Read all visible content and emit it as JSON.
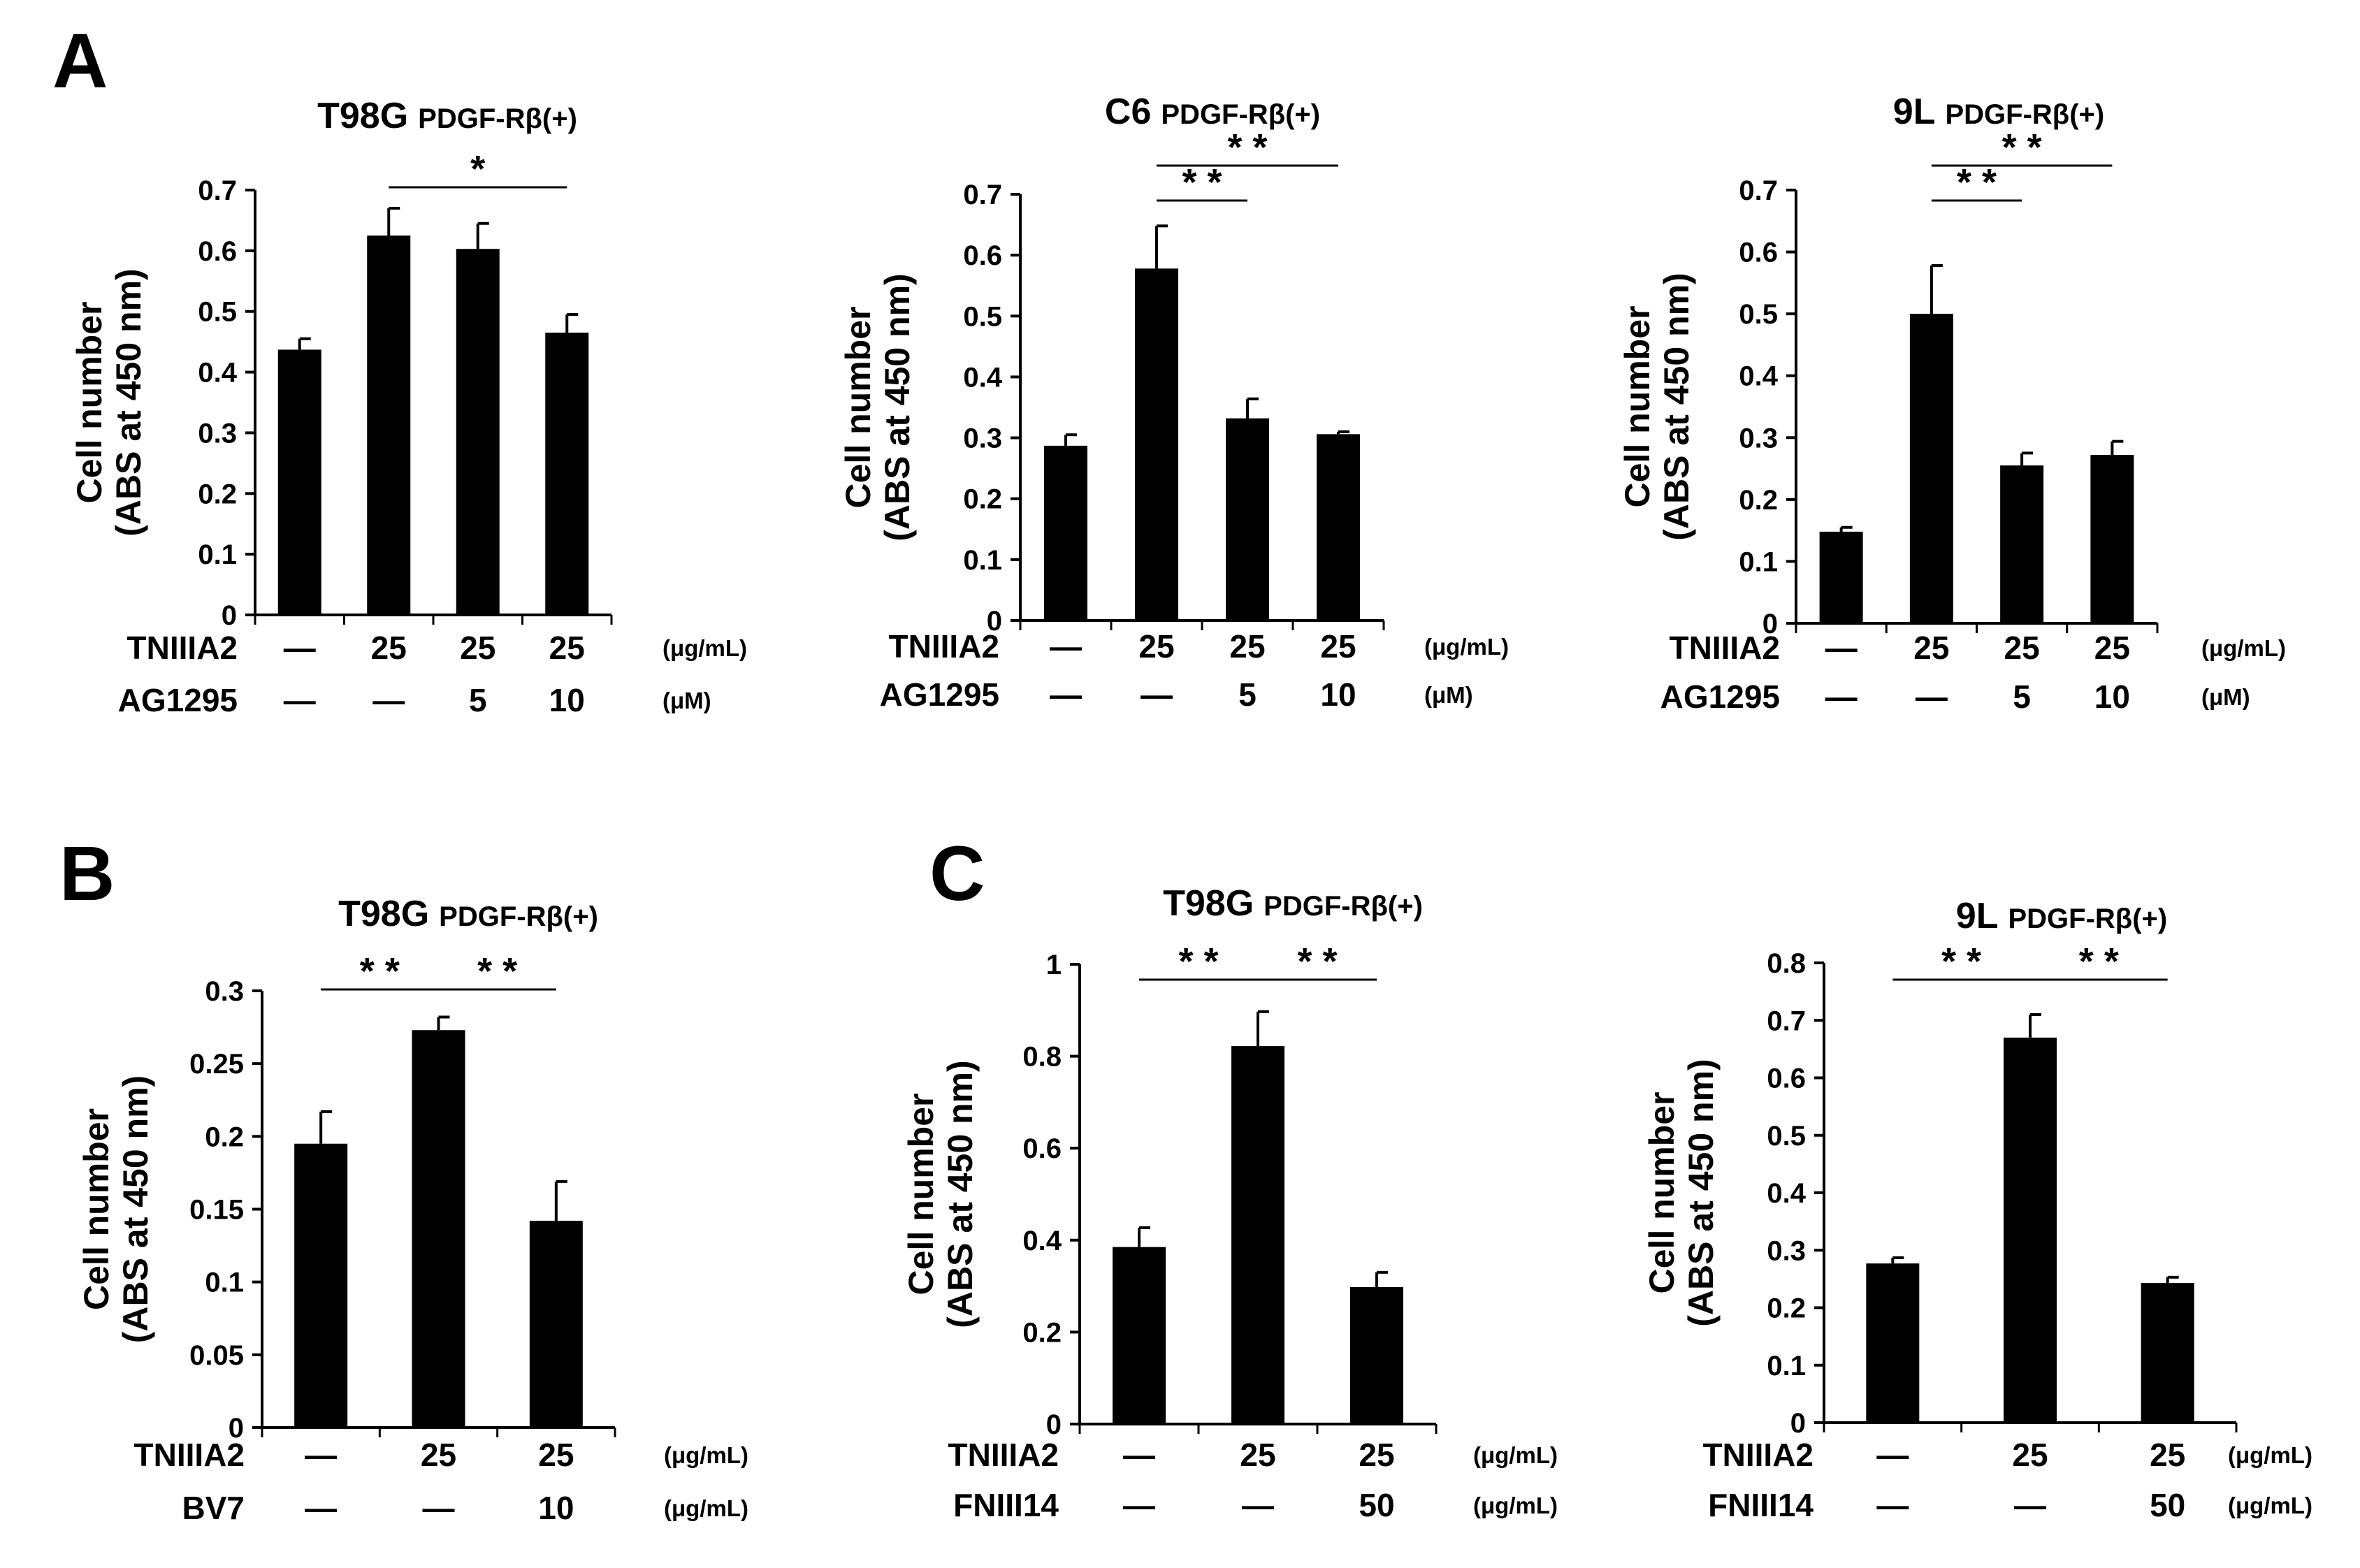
{
  "figure": {
    "panels": [
      {
        "letter": "A"
      },
      {
        "letter": "B"
      },
      {
        "letter": "C"
      }
    ]
  },
  "chart_data": [
    {
      "type": "bar",
      "panel": "A",
      "title": "T98G",
      "subtitle": "PDGF-Rβ(+)",
      "ylabel": [
        "Cell number",
        "(ABS at 450 nm)"
      ],
      "ylim": [
        0,
        0.7
      ],
      "yticks": [
        "0",
        "0.1",
        "0.2",
        "0.3",
        "0.4",
        "0.5",
        "0.6",
        "0.7"
      ],
      "values": [
        0.437,
        0.625,
        0.603,
        0.465
      ],
      "errors": [
        0.018,
        0.045,
        0.042,
        0.03
      ],
      "conditions": [
        {
          "name": "TNIIIA2",
          "values": [
            "—",
            "25",
            "25",
            "25"
          ],
          "unit": "(μg/mL)"
        },
        {
          "name": "AG1295",
          "values": [
            "—",
            "—",
            "5",
            "10"
          ],
          "unit": "(μM)"
        }
      ],
      "significance": [
        {
          "from": 1,
          "to": 3,
          "label": "*"
        }
      ]
    },
    {
      "type": "bar",
      "panel": "A",
      "title": "C6",
      "subtitle": "PDGF-Rβ(+)",
      "ylabel": [
        "Cell number",
        "(ABS at 450 nm)"
      ],
      "ylim": [
        0,
        0.7
      ],
      "yticks": [
        "0",
        "0.1",
        "0.2",
        "0.3",
        "0.4",
        "0.5",
        "0.6",
        "0.7"
      ],
      "values": [
        0.287,
        0.578,
        0.332,
        0.306
      ],
      "errors": [
        0.018,
        0.07,
        0.032,
        0.004
      ],
      "conditions": [
        {
          "name": "TNIIIA2",
          "values": [
            "—",
            "25",
            "25",
            "25"
          ],
          "unit": "(μg/mL)"
        },
        {
          "name": "AG1295",
          "values": [
            "—",
            "—",
            "5",
            "10"
          ],
          "unit": "(μM)"
        }
      ],
      "significance": [
        {
          "from": 1,
          "to": 2,
          "label": "* *"
        },
        {
          "from": 1,
          "to": 3,
          "label": "* *"
        }
      ]
    },
    {
      "type": "bar",
      "panel": "A",
      "title": "9L",
      "subtitle": "PDGF-Rβ(+)",
      "ylabel": [
        "Cell number",
        "(ABS at 450 nm)"
      ],
      "ylim": [
        0,
        0.7
      ],
      "yticks": [
        "0",
        "0.1",
        "0.2",
        "0.3",
        "0.4",
        "0.5",
        "0.6",
        "0.7"
      ],
      "values": [
        0.148,
        0.5,
        0.255,
        0.272
      ],
      "errors": [
        0.007,
        0.078,
        0.02,
        0.022
      ],
      "conditions": [
        {
          "name": "TNIIIA2",
          "values": [
            "—",
            "25",
            "25",
            "25"
          ],
          "unit": "(μg/mL)"
        },
        {
          "name": "AG1295",
          "values": [
            "—",
            "—",
            "5",
            "10"
          ],
          "unit": "(μM)"
        }
      ],
      "significance": [
        {
          "from": 1,
          "to": 2,
          "label": "* *"
        },
        {
          "from": 1,
          "to": 3,
          "label": "* *"
        }
      ]
    },
    {
      "type": "bar",
      "panel": "B",
      "title": "T98G",
      "subtitle": "PDGF-Rβ(+)",
      "ylabel": [
        "Cell number",
        "(ABS at 450 nm)"
      ],
      "ylim": [
        0,
        0.3
      ],
      "yticks": [
        "0",
        "0.05",
        "0.1",
        "0.15",
        "0.2",
        "0.25",
        "0.3"
      ],
      "values": [
        0.195,
        0.273,
        0.142
      ],
      "errors": [
        0.022,
        0.009,
        0.027
      ],
      "conditions": [
        {
          "name": "TNIIIA2",
          "values": [
            "—",
            "25",
            "25"
          ],
          "unit": "(μg/mL)"
        },
        {
          "name": "BV7",
          "values": [
            "—",
            "—",
            "10"
          ],
          "unit": "(μg/mL)"
        }
      ],
      "significance": [
        {
          "from": 0,
          "to": 1,
          "label": "* *"
        },
        {
          "from": 1,
          "to": 2,
          "label": "* *"
        }
      ]
    },
    {
      "type": "bar",
      "panel": "C",
      "title": "T98G",
      "subtitle": "PDGF-Rβ(+)",
      "ylabel": [
        "Cell number",
        "(ABS at 450 nm)"
      ],
      "ylim": [
        0,
        1
      ],
      "yticks": [
        "0",
        "0.2",
        "0.4",
        "0.6",
        "0.8",
        "1"
      ],
      "values": [
        0.385,
        0.822,
        0.298
      ],
      "errors": [
        0.042,
        0.075,
        0.032
      ],
      "conditions": [
        {
          "name": "TNIIIA2",
          "values": [
            "—",
            "25",
            "25"
          ],
          "unit": "(μg/mL)"
        },
        {
          "name": "FNIII14",
          "values": [
            "—",
            "—",
            "50"
          ],
          "unit": "(μg/mL)"
        }
      ],
      "significance": [
        {
          "from": 0,
          "to": 1,
          "label": "* *"
        },
        {
          "from": 1,
          "to": 2,
          "label": "* *"
        }
      ]
    },
    {
      "type": "bar",
      "panel": "C",
      "title": "9L",
      "subtitle": "PDGF-Rβ(+)",
      "ylabel": [
        "Cell number",
        "(ABS at 450 nm)"
      ],
      "ylim": [
        0,
        0.8
      ],
      "yticks": [
        "0",
        "0.1",
        "0.2",
        "0.3",
        "0.4",
        "0.5",
        "0.6",
        "0.7",
        "0.8"
      ],
      "values": [
        0.277,
        0.67,
        0.243
      ],
      "errors": [
        0.01,
        0.04,
        0.01
      ],
      "conditions": [
        {
          "name": "TNIIIA2",
          "values": [
            "—",
            "25",
            "25"
          ],
          "unit": "(μg/mL)"
        },
        {
          "name": "FNIII14",
          "values": [
            "—",
            "—",
            "50"
          ],
          "unit": "(μg/mL)"
        }
      ],
      "significance": [
        {
          "from": 0,
          "to": 1,
          "label": "* *"
        },
        {
          "from": 1,
          "to": 2,
          "label": "* *"
        }
      ]
    }
  ]
}
